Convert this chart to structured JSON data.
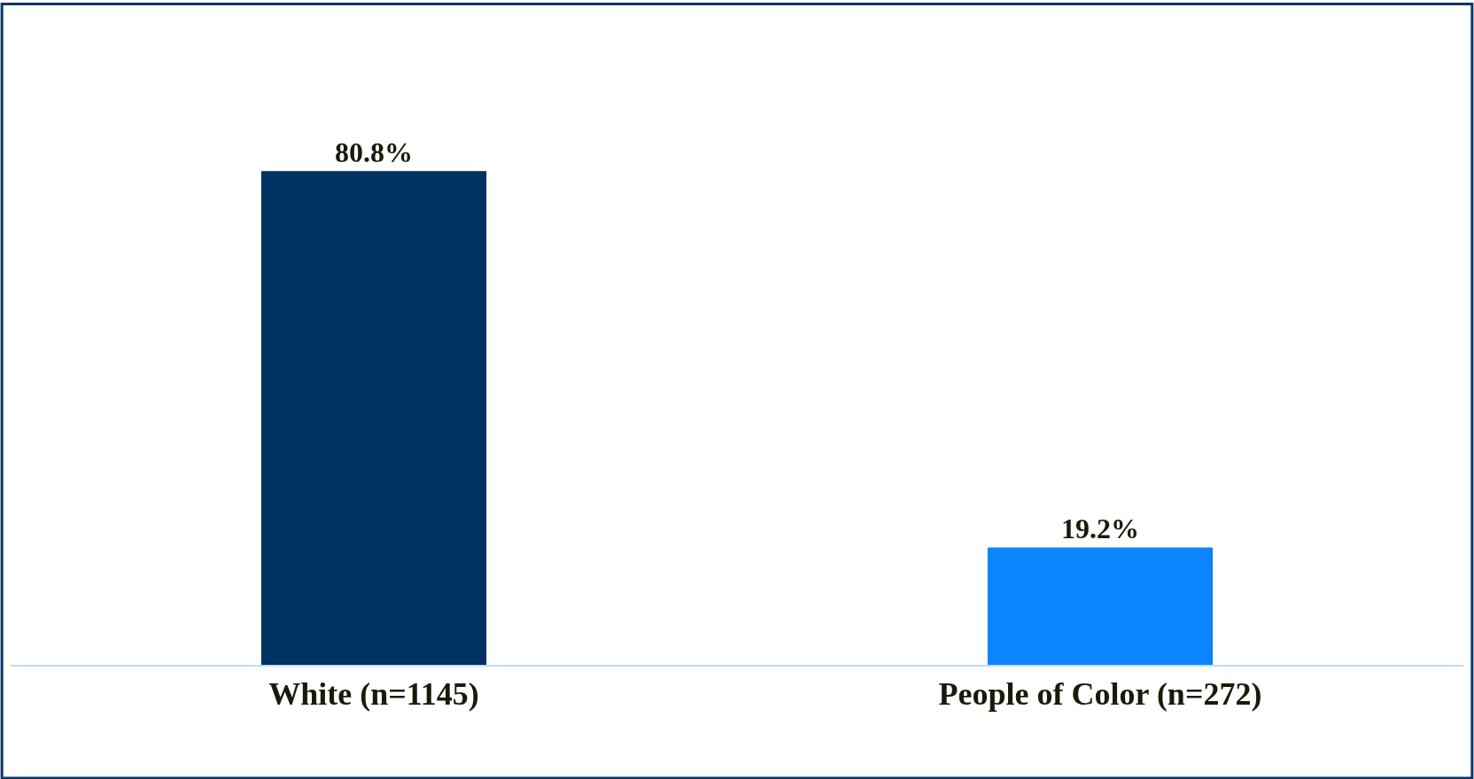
{
  "chart_data": {
    "type": "bar",
    "categories": [
      "White (n=1145)",
      "People of Color (n=272)"
    ],
    "values": [
      80.8,
      19.2
    ],
    "colors": [
      "#003262",
      "#0a84ff"
    ],
    "value_labels": [
      "80.8%",
      "19.2%"
    ]
  }
}
